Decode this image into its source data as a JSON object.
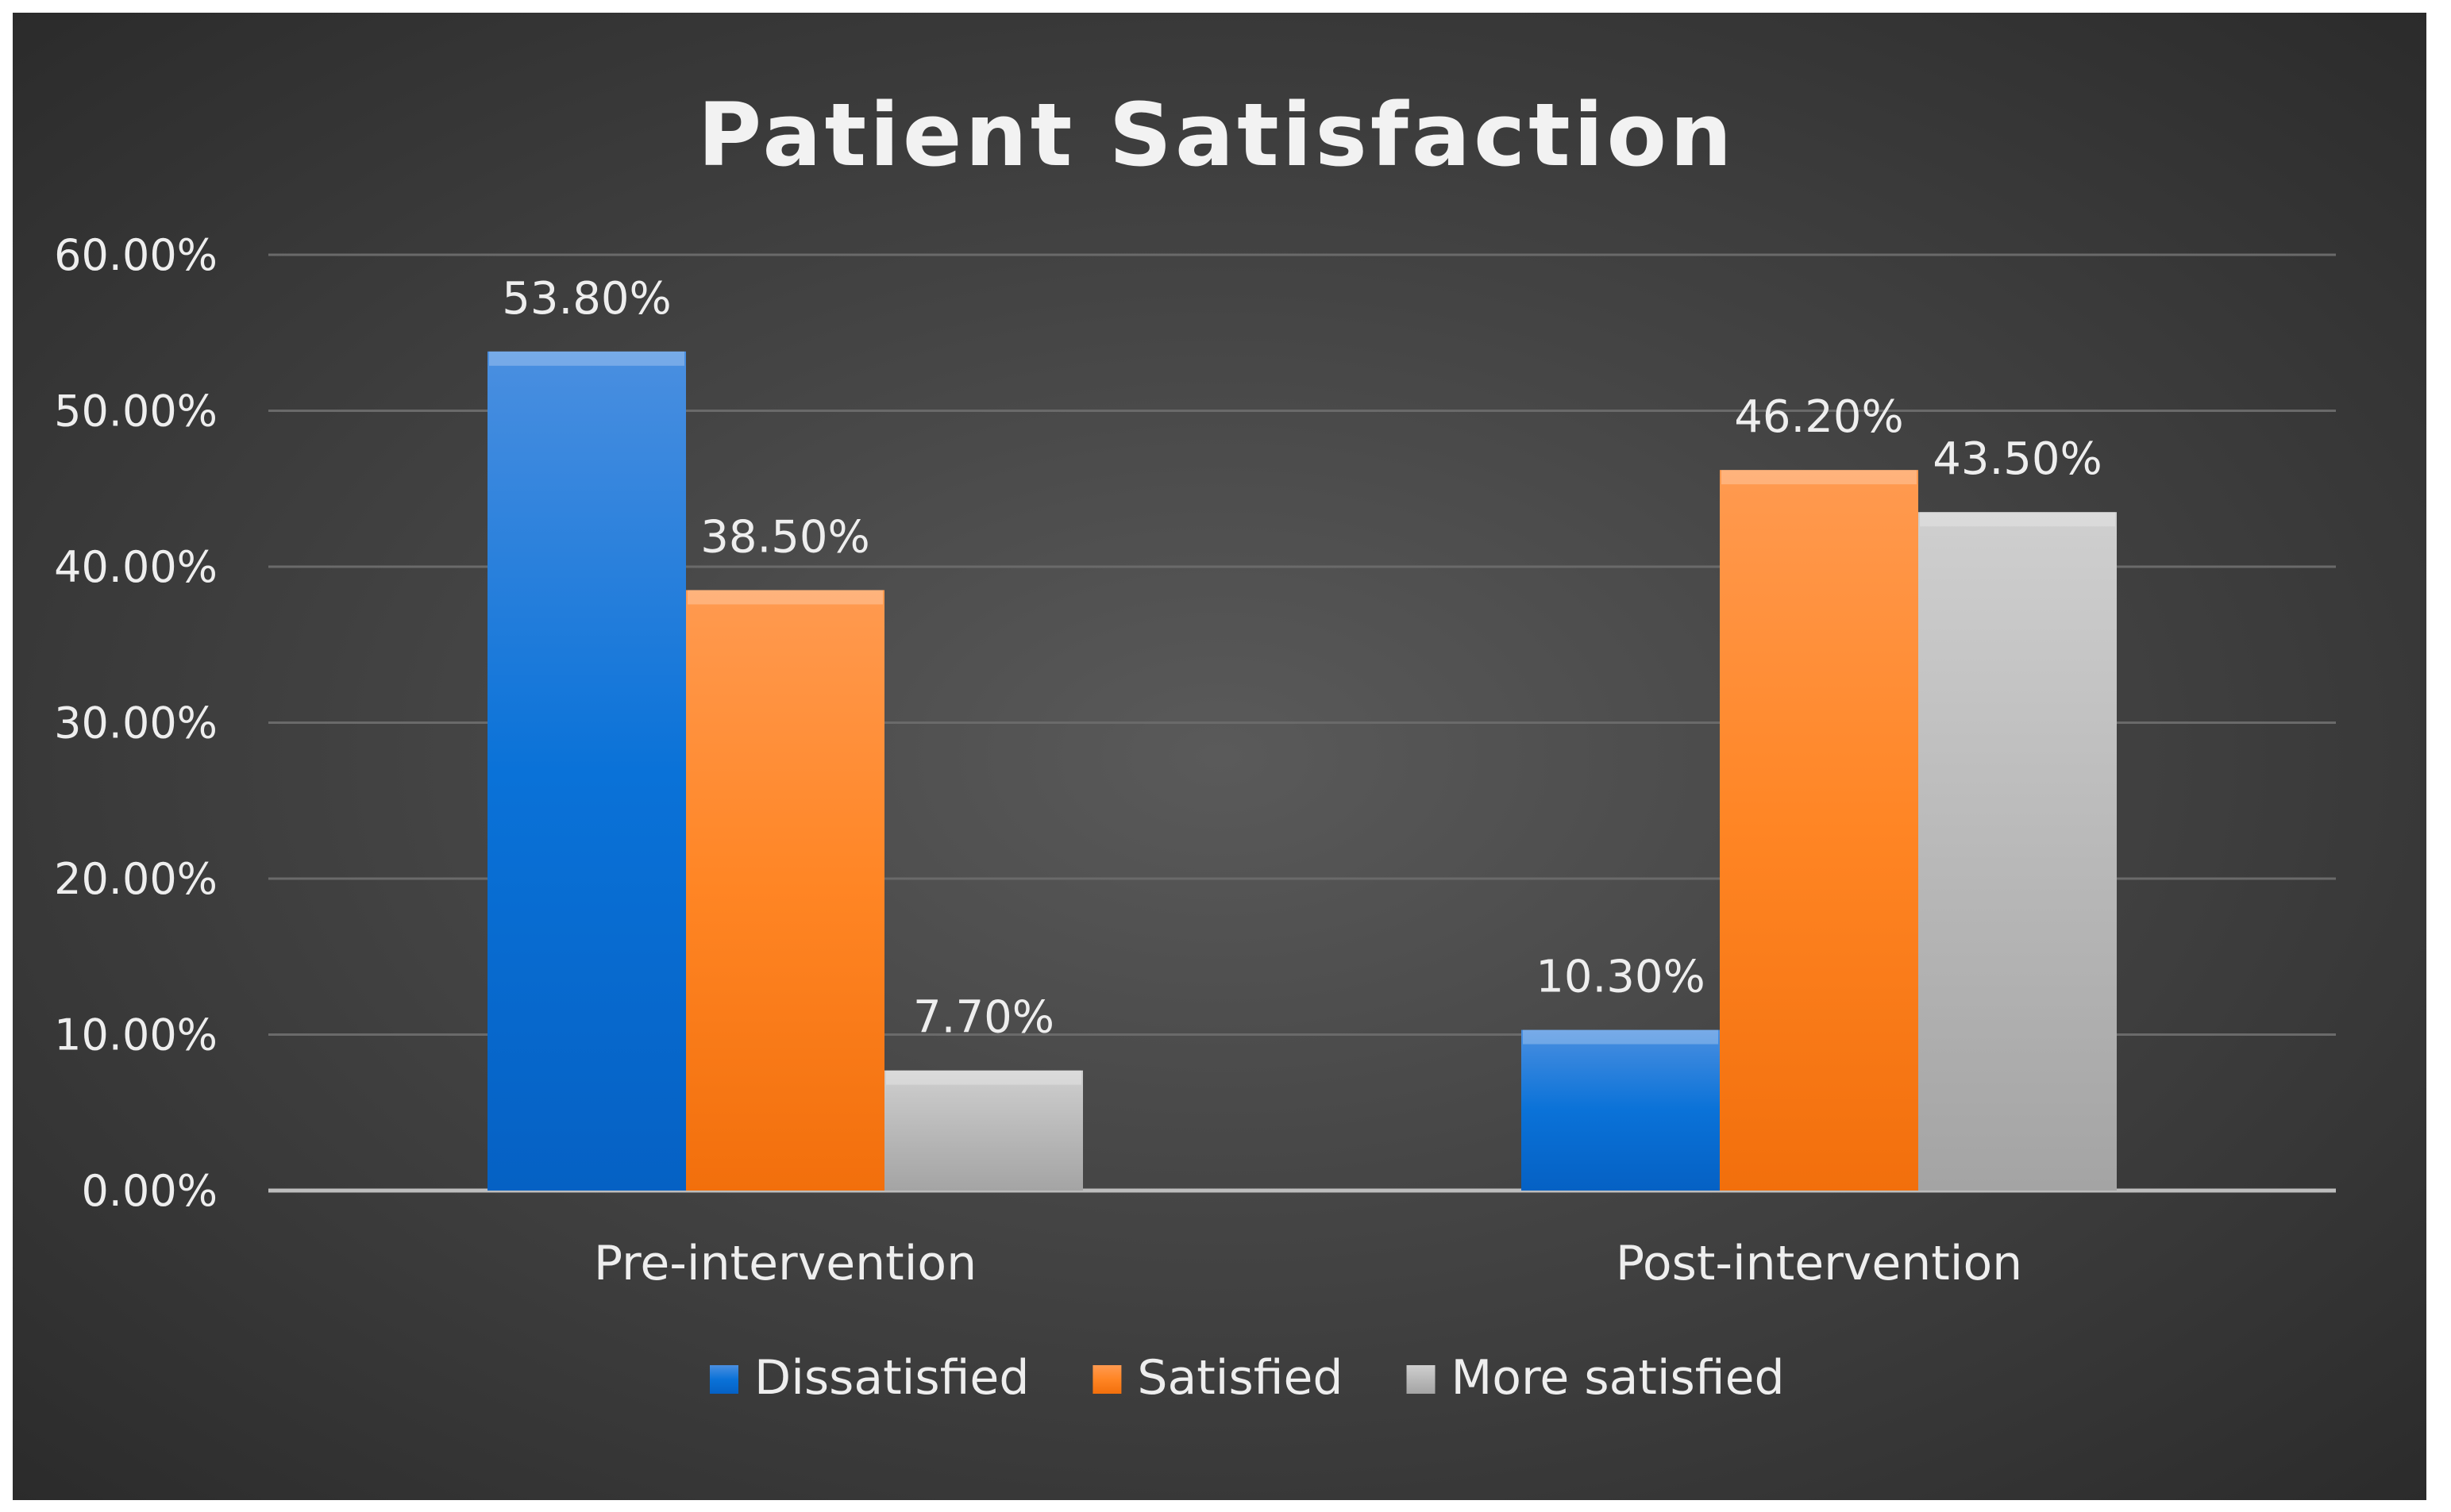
{
  "chart_data": {
    "type": "bar",
    "title": "Patient Satisfaction",
    "categories": [
      "Pre-intervention",
      "Post-intervention"
    ],
    "series": [
      {
        "name": "Dissatisfied",
        "values": [
          53.8,
          10.3
        ],
        "labels": [
          "53.80%",
          "10.30%"
        ],
        "color": "#1f78d6"
      },
      {
        "name": "Satisfied",
        "values": [
          38.5,
          46.2
        ],
        "labels": [
          "38.50%",
          "46.20%"
        ],
        "color": "#ff7f1e"
      },
      {
        "name": "More satisfied",
        "values": [
          7.7,
          43.5
        ],
        "labels": [
          "7.70%",
          "43.50%"
        ],
        "color": "#b4b4b4"
      }
    ],
    "y_ticks": [
      "0.00%",
      "10.00%",
      "20.00%",
      "30.00%",
      "40.00%",
      "50.00%",
      "60.00%"
    ],
    "ylim": [
      0,
      60
    ],
    "xlabel": "",
    "ylabel": "",
    "grid": true,
    "legend_position": "bottom"
  }
}
